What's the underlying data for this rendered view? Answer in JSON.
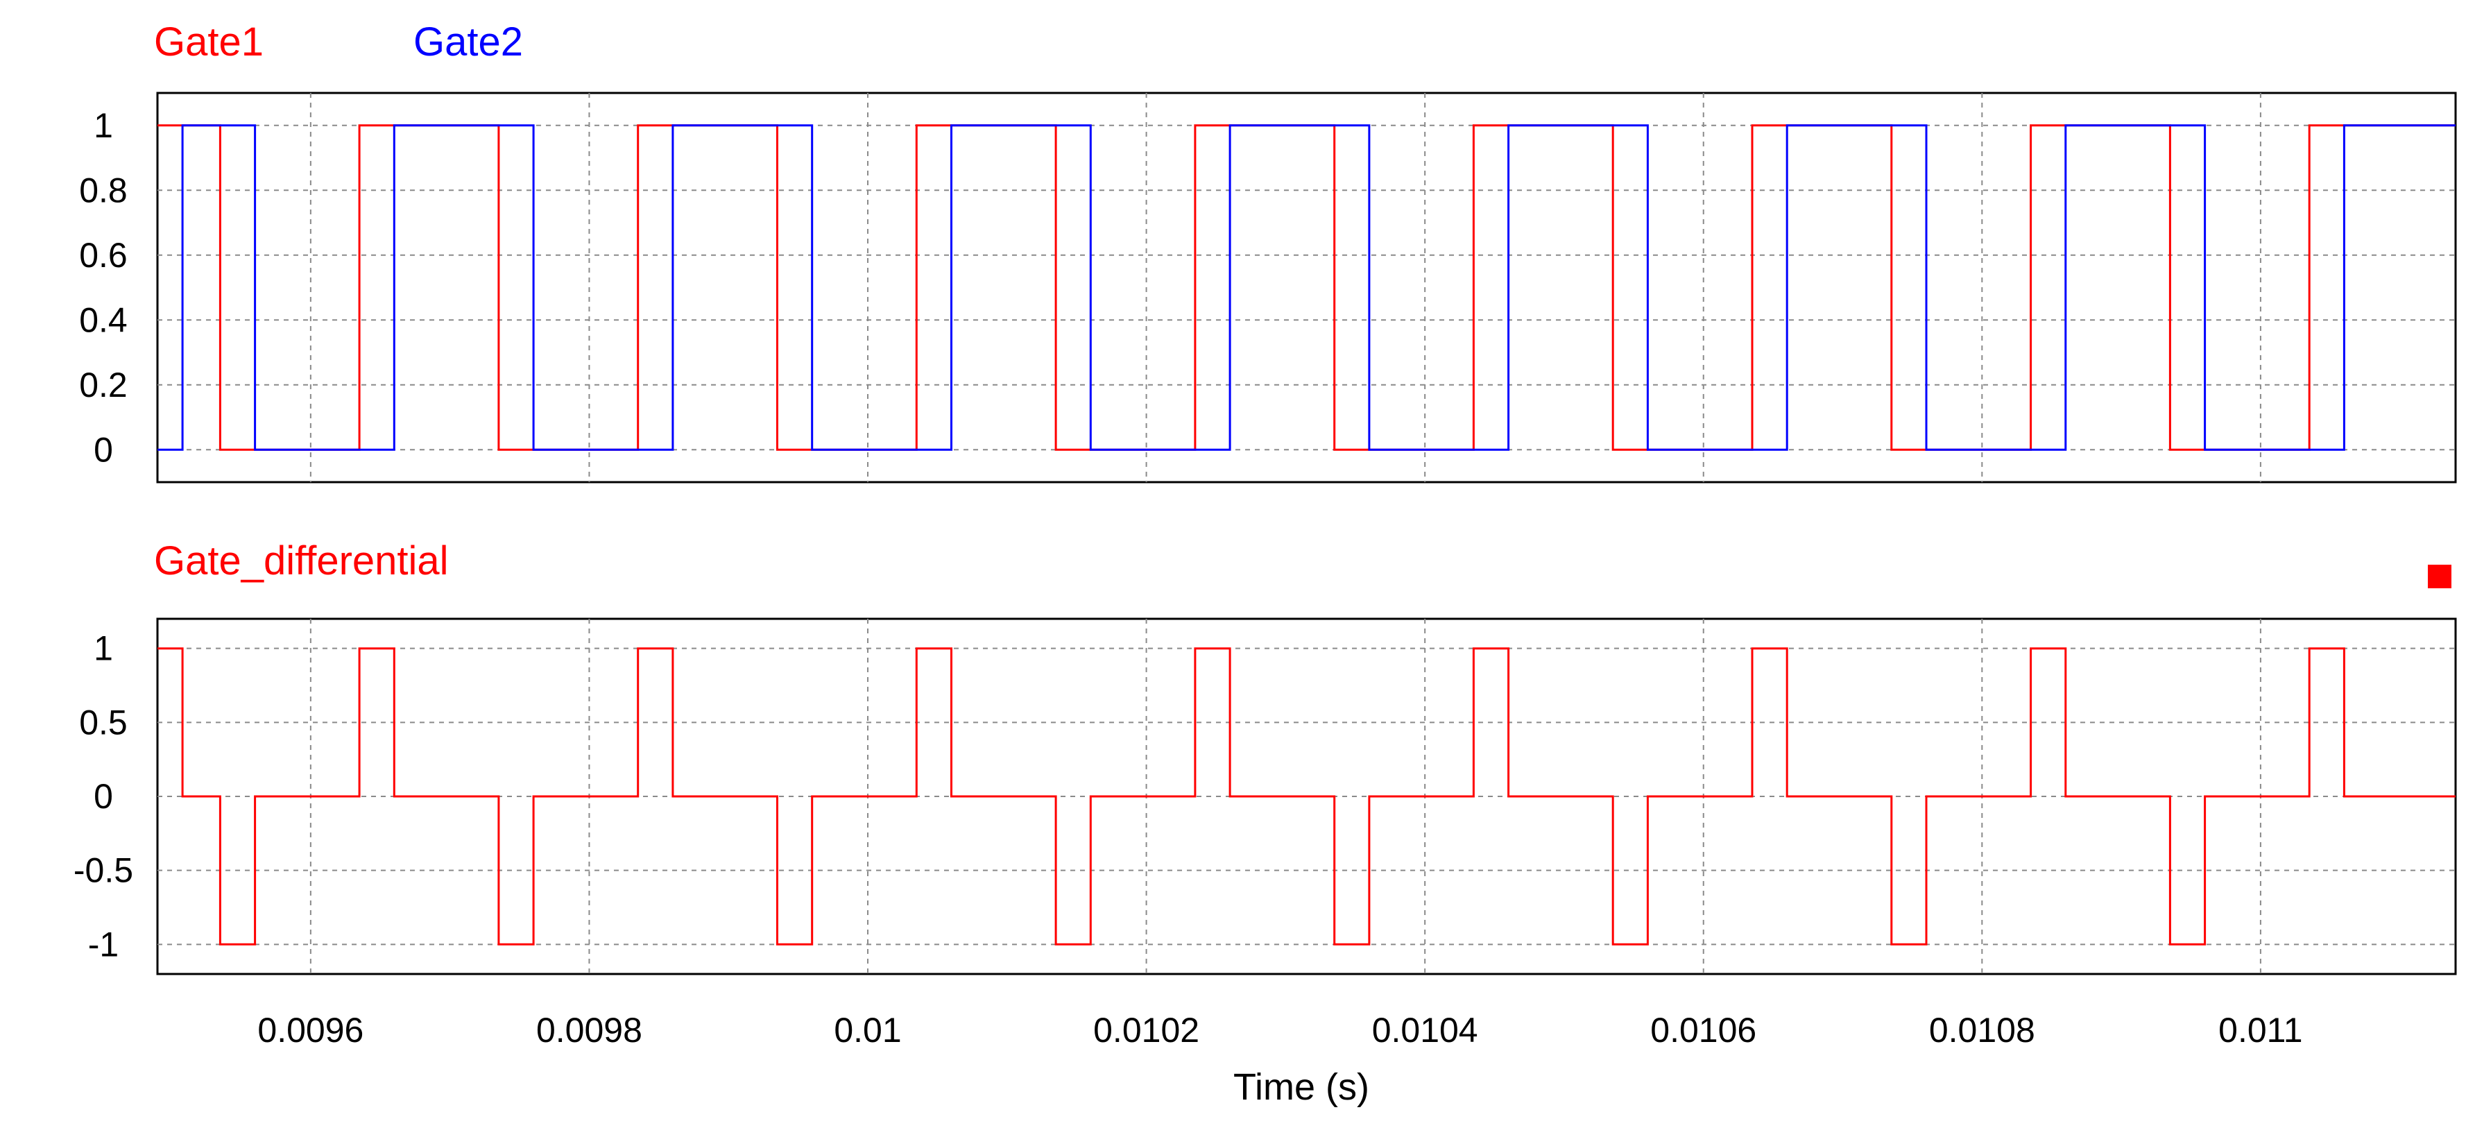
{
  "chart_data": [
    {
      "type": "line",
      "step": true,
      "xlim": [
        0.00949,
        0.01114
      ],
      "ylim": [
        -0.1,
        1.1
      ],
      "grid": true,
      "legend_position": "top-left",
      "yticks": [
        {
          "value": 0,
          "label": "0"
        },
        {
          "value": 0.2,
          "label": "0.2"
        },
        {
          "value": 0.4,
          "label": "0.4"
        },
        {
          "value": 0.6,
          "label": "0.6"
        },
        {
          "value": 0.8,
          "label": "0.8"
        },
        {
          "value": 1,
          "label": "1"
        }
      ],
      "series": [
        {
          "name": "Gate1",
          "color": "#ff0000",
          "x": [
            0.00949,
            0.009535,
            0.009535,
            0.009635,
            0.009635,
            0.009735,
            0.009735,
            0.009835,
            0.009835,
            0.009935,
            0.009935,
            0.010035,
            0.010035,
            0.010135,
            0.010135,
            0.010235,
            0.010235,
            0.010335,
            0.010335,
            0.010435,
            0.010435,
            0.010535,
            0.010535,
            0.010635,
            0.010635,
            0.010735,
            0.010735,
            0.010835,
            0.010835,
            0.010935,
            0.010935,
            0.011035,
            0.011035,
            0.01114
          ],
          "y": [
            1,
            1,
            0,
            0,
            1,
            1,
            0,
            0,
            1,
            1,
            0,
            0,
            1,
            1,
            0,
            0,
            1,
            1,
            0,
            0,
            1,
            1,
            0,
            0,
            1,
            1,
            0,
            0,
            1,
            1,
            0,
            0,
            1,
            1
          ]
        },
        {
          "name": "Gate2",
          "color": "#0000ff",
          "x": [
            0.00949,
            0.009508,
            0.009508,
            0.00956,
            0.00956,
            0.00966,
            0.00966,
            0.00976,
            0.00976,
            0.00986,
            0.00986,
            0.00996,
            0.00996,
            0.01006,
            0.01006,
            0.01016,
            0.01016,
            0.01026,
            0.01026,
            0.01036,
            0.01036,
            0.01046,
            0.01046,
            0.01056,
            0.01056,
            0.01066,
            0.01066,
            0.01076,
            0.01076,
            0.01086,
            0.01086,
            0.01096,
            0.01096,
            0.01106,
            0.01106,
            0.01114
          ],
          "y": [
            0,
            0,
            1,
            1,
            0,
            0,
            1,
            1,
            0,
            0,
            1,
            1,
            0,
            0,
            1,
            1,
            0,
            0,
            1,
            1,
            0,
            0,
            1,
            1,
            0,
            0,
            1,
            1,
            0,
            0,
            1,
            1,
            0,
            0,
            1,
            1
          ]
        }
      ]
    },
    {
      "type": "line",
      "step": true,
      "xlim": [
        0.00949,
        0.01114
      ],
      "ylim": [
        -1.2,
        1.2
      ],
      "grid": true,
      "legend_position": "top-left",
      "xlabel": "Time (s)",
      "xticks": [
        {
          "value": 0.0096,
          "label": "0.0096"
        },
        {
          "value": 0.0098,
          "label": "0.0098"
        },
        {
          "value": 0.01,
          "label": "0.01"
        },
        {
          "value": 0.0102,
          "label": "0.0102"
        },
        {
          "value": 0.0104,
          "label": "0.0104"
        },
        {
          "value": 0.0106,
          "label": "0.0106"
        },
        {
          "value": 0.0108,
          "label": "0.0108"
        },
        {
          "value": 0.011,
          "label": "0.011"
        }
      ],
      "yticks": [
        {
          "value": -1,
          "label": "-1"
        },
        {
          "value": -0.5,
          "label": "-0.5"
        },
        {
          "value": 0,
          "label": "0"
        },
        {
          "value": 0.5,
          "label": "0.5"
        },
        {
          "value": 1,
          "label": "1"
        }
      ],
      "series": [
        {
          "name": "Gate_differential",
          "color": "#ff0000",
          "x": [
            0.00949,
            0.009508,
            0.009508,
            0.009535,
            0.009535,
            0.00956,
            0.00956,
            0.009635,
            0.009635,
            0.00966,
            0.00966,
            0.009735,
            0.009735,
            0.00976,
            0.00976,
            0.009835,
            0.009835,
            0.00986,
            0.00986,
            0.009935,
            0.009935,
            0.00996,
            0.00996,
            0.010035,
            0.010035,
            0.01006,
            0.01006,
            0.010135,
            0.010135,
            0.01016,
            0.01016,
            0.010235,
            0.010235,
            0.01026,
            0.01026,
            0.010335,
            0.010335,
            0.01036,
            0.01036,
            0.010435,
            0.010435,
            0.01046,
            0.01046,
            0.010535,
            0.010535,
            0.01056,
            0.01056,
            0.010635,
            0.010635,
            0.01066,
            0.01066,
            0.010735,
            0.010735,
            0.01076,
            0.01076,
            0.010835,
            0.010835,
            0.01086,
            0.01086,
            0.010935,
            0.010935,
            0.01096,
            0.01096,
            0.011035,
            0.011035,
            0.01106,
            0.01106,
            0.01114
          ],
          "y": [
            1,
            1,
            0,
            0,
            -1,
            -1,
            0,
            0,
            1,
            1,
            0,
            0,
            -1,
            -1,
            0,
            0,
            1,
            1,
            0,
            0,
            -1,
            -1,
            0,
            0,
            1,
            1,
            0,
            0,
            -1,
            -1,
            0,
            0,
            1,
            1,
            0,
            0,
            -1,
            -1,
            0,
            0,
            1,
            1,
            0,
            0,
            -1,
            -1,
            0,
            0,
            1,
            1,
            0,
            0,
            -1,
            -1,
            0,
            0,
            1,
            1,
            0,
            0,
            -1,
            -1,
            0,
            0,
            1,
            1,
            0,
            0
          ]
        }
      ],
      "marker_color": "#ff0000"
    }
  ]
}
